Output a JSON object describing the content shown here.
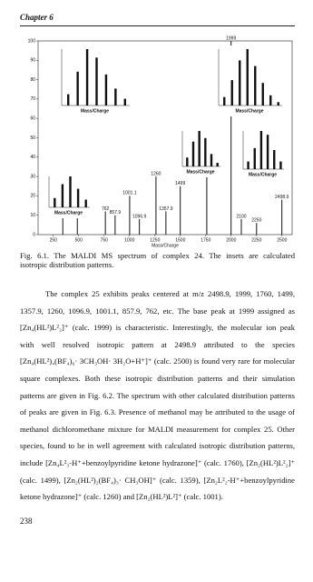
{
  "header": {
    "title": "Chapter 6"
  },
  "figure": {
    "chart_data": {
      "type": "bar",
      "x_label": "Mass/Charge",
      "x": [
        343,
        486,
        762,
        857.9,
        1001.1,
        1096.9,
        1260,
        1357.9,
        1499,
        1760,
        1999,
        2100,
        2250,
        2498.9
      ],
      "values": [
        12,
        22,
        12,
        10,
        20,
        8,
        30,
        12,
        25,
        35,
        100,
        8,
        6,
        18
      ],
      "color": "#111111",
      "xlim": [
        100,
        2600
      ],
      "xticks": [
        250,
        500,
        750,
        1000,
        1250,
        1500,
        1750,
        2000,
        2250,
        2500
      ],
      "ylim": [
        0,
        100
      ],
      "yticks": [
        0,
        10,
        20,
        30,
        40,
        50,
        60,
        70,
        80,
        90,
        100
      ],
      "insets": [
        {
          "x_label": "Mass/Charge",
          "ylim": [
            0,
            100
          ],
          "values": [
            20,
            60,
            100,
            85,
            55,
            30,
            12
          ]
        },
        {
          "x_label": "Mass/Charge",
          "ylim": [
            0,
            100
          ],
          "values": [
            15,
            45,
            80,
            100,
            70,
            40,
            18,
            6
          ]
        },
        {
          "x_label": "Mass/Charge",
          "ylim": [
            0,
            100
          ],
          "values": [
            30,
            75,
            100,
            60,
            25
          ]
        },
        {
          "x_label": "Mass/Charge",
          "ylim": [
            0,
            100
          ],
          "values": [
            25,
            70,
            100,
            80,
            35,
            10
          ]
        },
        {
          "x_label": "Mass/Charge",
          "ylim": [
            0,
            100
          ],
          "values": [
            20,
            55,
            100,
            90,
            50,
            20
          ]
        }
      ]
    }
  },
  "caption": [
    "Fig. 6.1. The MALDI MS spectrum of complex 24. The insets are calculated",
    "isotropic distribution patterns."
  ],
  "body": [
    "The complex 25 exhibits peaks centered at m/z 2498.9, 1999, 1760, 1499,",
    "1357.9, 1260, 1096.9, 1001.1, 857.9, 762, etc. The base peak at 1999 assigned as",
    "[Zn₄(HL²)L²₂]⁺ (calc. 1999) is characteristic. Interestingly, the molecular ion peak",
    "with well resolved isotropic pattern at 2498.9 attributed to the species",
    "[Zn₄(HL²)₄(BF₄)₆· 3CH₃OH· 3H₂O+H⁺]⁺ (calc. 2500) is found very rare for molecular",
    "square complexes. Both these isotropic distribution patterns and their simulation",
    "patterns are given in Fig. 6.2. The spectrum with other calculated distribution patterns",
    "of peaks are given in Fig. 6.3. Presence of methanol may be attributed to the usage of",
    "methanol dichloromethane mixture for MALDI measurement for complex 25. Other",
    "species, found to be in well agreement with calculated isotropic distribution patterns,",
    "include [Zn₄L²₃-H⁺+benzoylpyridine ketone hydrazone]⁺ (calc. 1760), [Zn₂(HL²)L²₂]⁺",
    "(calc. 1499), [Zn₂(HL²)₂(BF₄)₃· CH₃OH]⁺ (calc. 1359), [Zn₂L²₂-H⁺+benzoylpyridine",
    "ketone hydrazone]⁺ (calc. 1260) and [Zn₂(HL²)L²]⁺ (calc. 1001)."
  ],
  "footer": {
    "page": "238"
  }
}
